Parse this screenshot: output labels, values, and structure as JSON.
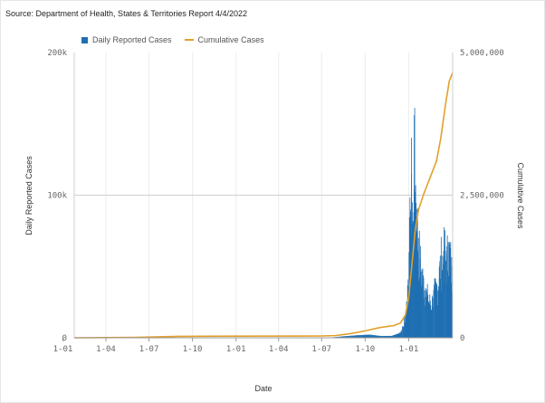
{
  "source_text": "Source: Department of Health, States & Territories Report 4/4/2022",
  "chart_data": {
    "type": "bar+line",
    "xlabel": "Date",
    "ylabel_left": "Daily Reported Cases",
    "ylabel_right": "Cumulative Cases",
    "ylim_left": [
      0,
      200000
    ],
    "ylim_right": [
      0,
      5000000
    ],
    "yticks_left": [
      {
        "value": 0,
        "label": "0"
      },
      {
        "value": 100000,
        "label": "100k"
      },
      {
        "value": 200000,
        "label": "200k"
      }
    ],
    "yticks_right": [
      {
        "value": 0,
        "label": "0"
      },
      {
        "value": 2500000,
        "label": "2,500,000"
      },
      {
        "value": 5000000,
        "label": "5,000,000"
      }
    ],
    "xlim": [
      "2020-01-25",
      "2022-04-04"
    ],
    "xticks": [
      {
        "date": "2020-01-01",
        "label": "1-01"
      },
      {
        "date": "2020-04-01",
        "label": "1-04"
      },
      {
        "date": "2020-07-01",
        "label": "1-07"
      },
      {
        "date": "2020-10-01",
        "label": "1-10"
      },
      {
        "date": "2021-01-01",
        "label": "1-01"
      },
      {
        "date": "2021-04-01",
        "label": "1-04"
      },
      {
        "date": "2021-07-01",
        "label": "1-07"
      },
      {
        "date": "2021-10-01",
        "label": "1-10"
      },
      {
        "date": "2022-01-01",
        "label": "1-01"
      }
    ],
    "grid": "vertical gridlines at month ticks, horizontal gridline at 100k",
    "legend_position": "top-left",
    "series": [
      {
        "name": "Daily Reported Cases",
        "type": "bar",
        "color": "#1f6fb2",
        "points": [
          [
            "2020-03-25",
            500
          ],
          [
            "2020-04-15",
            100
          ],
          [
            "2020-07-25",
            500
          ],
          [
            "2020-08-05",
            700
          ],
          [
            "2020-09-01",
            200
          ],
          [
            "2021-06-01",
            20
          ],
          [
            "2021-07-20",
            200
          ],
          [
            "2021-08-15",
            1000
          ],
          [
            "2021-09-15",
            1800
          ],
          [
            "2021-10-10",
            2200
          ],
          [
            "2021-11-01",
            1300
          ],
          [
            "2021-11-25",
            1300
          ],
          [
            "2021-12-10",
            3000
          ],
          [
            "2021-12-20",
            8000
          ],
          [
            "2021-12-27",
            25000
          ],
          [
            "2022-01-01",
            60000
          ],
          [
            "2022-01-04",
            90000
          ],
          [
            "2022-01-06",
            115000
          ],
          [
            "2022-01-08",
            95000
          ],
          [
            "2022-01-10",
            80000
          ],
          [
            "2022-01-12",
            156000
          ],
          [
            "2022-01-13",
            130000
          ],
          [
            "2022-01-15",
            107000
          ],
          [
            "2022-01-18",
            90000
          ],
          [
            "2022-01-21",
            70000
          ],
          [
            "2022-01-25",
            55000
          ],
          [
            "2022-01-28",
            48000
          ],
          [
            "2022-02-01",
            42000
          ],
          [
            "2022-02-05",
            35000
          ],
          [
            "2022-02-10",
            30000
          ],
          [
            "2022-02-15",
            26000
          ],
          [
            "2022-02-20",
            28000
          ],
          [
            "2022-02-25",
            35000
          ],
          [
            "2022-03-01",
            38000
          ],
          [
            "2022-03-06",
            50000
          ],
          [
            "2022-03-10",
            58000
          ],
          [
            "2022-03-15",
            61000
          ],
          [
            "2022-03-18",
            65000
          ],
          [
            "2022-03-22",
            58000
          ],
          [
            "2022-03-25",
            67000
          ],
          [
            "2022-03-29",
            62000
          ],
          [
            "2022-04-01",
            50000
          ],
          [
            "2022-04-03",
            45000
          ]
        ]
      },
      {
        "name": "Cumulative Cases",
        "type": "line",
        "color": "#e3a02a",
        "points": [
          [
            "2020-01-25",
            0
          ],
          [
            "2020-06-01",
            7000
          ],
          [
            "2020-09-01",
            26000
          ],
          [
            "2021-01-01",
            28500
          ],
          [
            "2021-06-01",
            30000
          ],
          [
            "2021-07-01",
            31000
          ],
          [
            "2021-08-01",
            40000
          ],
          [
            "2021-09-01",
            75000
          ],
          [
            "2021-10-01",
            120000
          ],
          [
            "2021-11-01",
            180000
          ],
          [
            "2021-12-01",
            215000
          ],
          [
            "2021-12-15",
            260000
          ],
          [
            "2021-12-25",
            400000
          ],
          [
            "2022-01-01",
            700000
          ],
          [
            "2022-01-08",
            1300000
          ],
          [
            "2022-01-15",
            1900000
          ],
          [
            "2022-01-22",
            2250000
          ],
          [
            "2022-02-01",
            2500000
          ],
          [
            "2022-02-15",
            2800000
          ],
          [
            "2022-03-01",
            3100000
          ],
          [
            "2022-03-10",
            3500000
          ],
          [
            "2022-03-20",
            4100000
          ],
          [
            "2022-03-28",
            4500000
          ],
          [
            "2022-04-04",
            4650000
          ]
        ]
      }
    ]
  }
}
